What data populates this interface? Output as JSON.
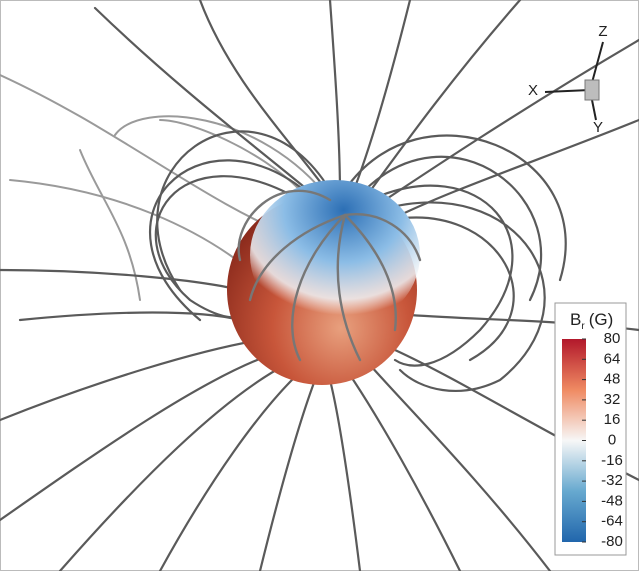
{
  "colorbar": {
    "title": "B",
    "subscript": "r",
    "unit": "(G)",
    "lim": [
      -80,
      80
    ],
    "ticks": [
      80,
      64,
      48,
      32,
      16,
      0,
      -16,
      -32,
      -48,
      -64,
      -80
    ]
  },
  "triad": {
    "z": "Z",
    "x": "X",
    "y": "Y"
  }
}
